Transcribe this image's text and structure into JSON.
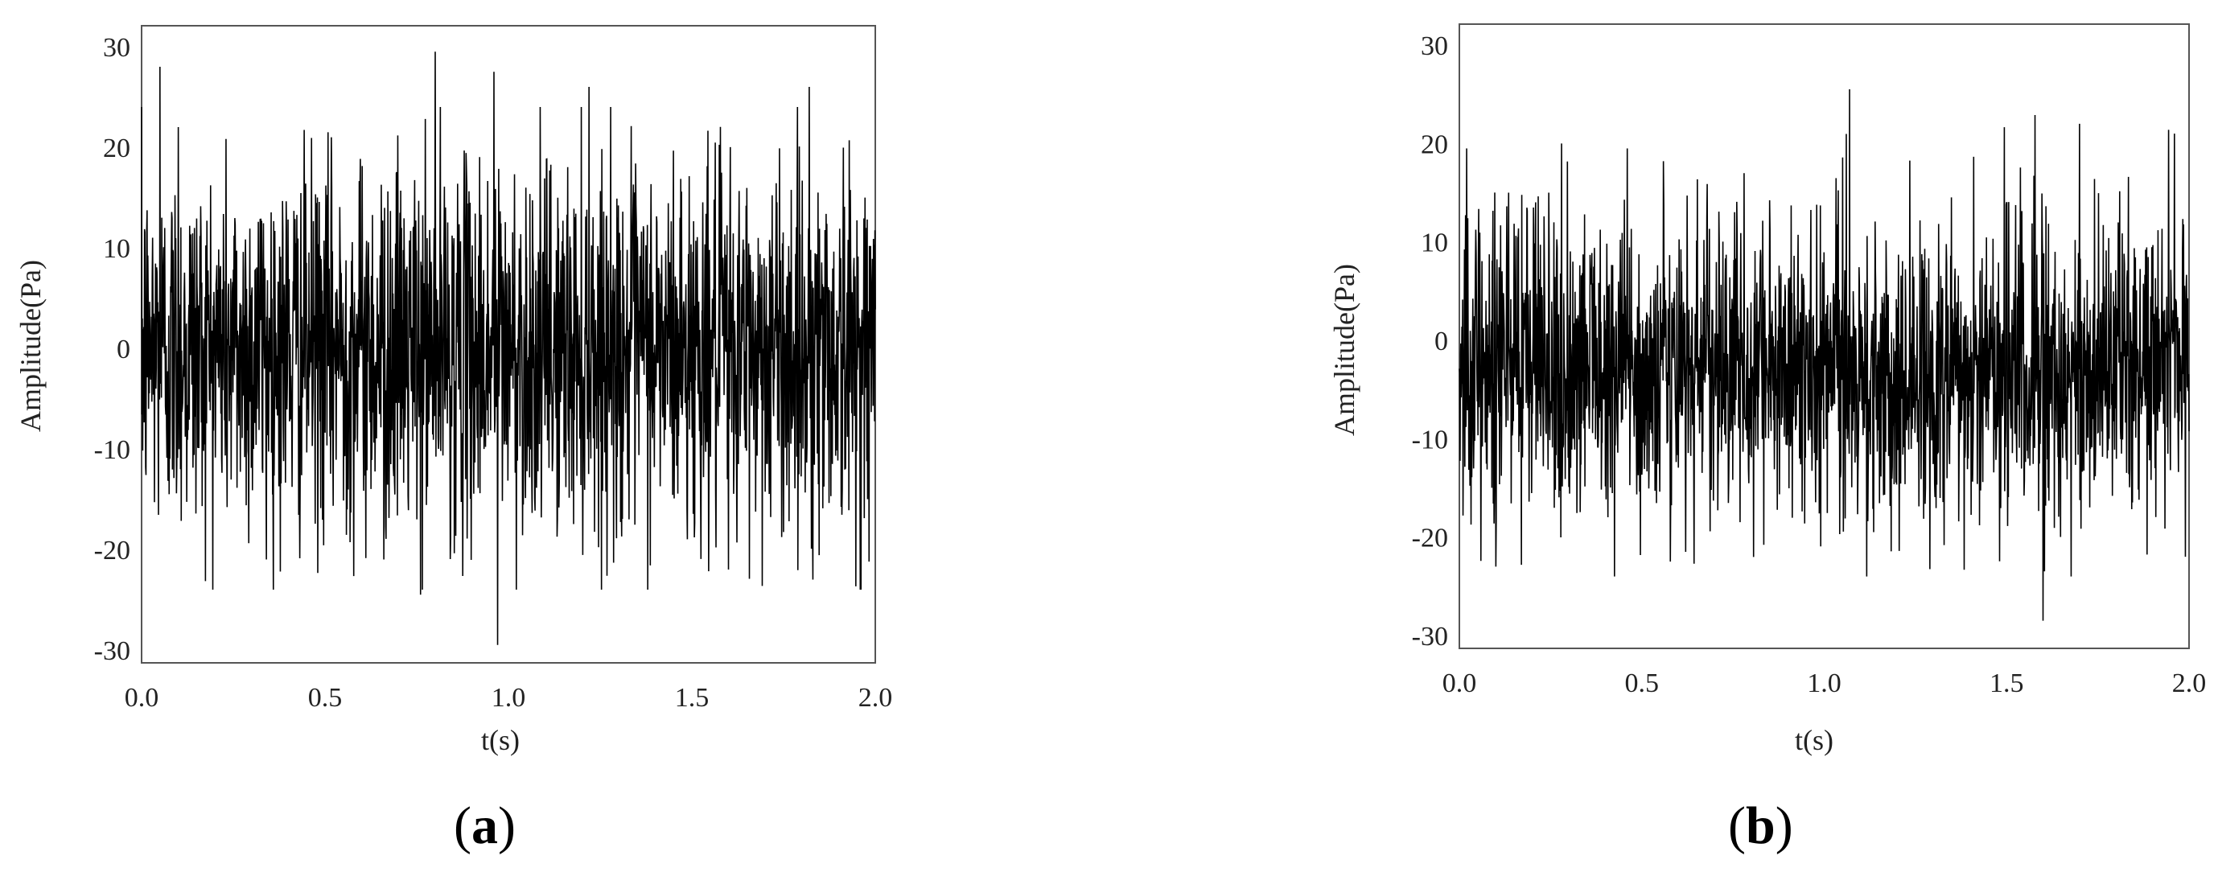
{
  "chart_data": [
    {
      "type": "line",
      "panel_label": "a",
      "xlabel": "t(s)",
      "ylabel": "Amplitude(Pa)",
      "xlim": [
        0.0,
        2.0
      ],
      "ylim": [
        -30,
        30
      ],
      "xticks": [
        "0.0",
        "0.5",
        "1.0",
        "1.5",
        "2.0"
      ],
      "yticks": [
        "30",
        "20",
        "10",
        "0",
        "-10",
        "-20",
        "-30"
      ],
      "grid": false,
      "legend": "none",
      "series": [
        {
          "samples": 2000,
          "mean": 0,
          "std": 9,
          "peaks": [
            {
              "x": 0.05,
              "y": 28
            },
            {
              "x": 0.1,
              "y": 22
            },
            {
              "x": 0.34,
              "y": -21
            },
            {
              "x": 0.66,
              "y": -21
            },
            {
              "x": 0.76,
              "y": -24.5
            },
            {
              "x": 0.8,
              "y": 29.5
            },
            {
              "x": 0.96,
              "y": 27.5
            },
            {
              "x": 0.97,
              "y": -29.5
            },
            {
              "x": 1.22,
              "y": 26
            },
            {
              "x": 1.6,
              "y": -22
            },
            {
              "x": 1.82,
              "y": 26
            },
            {
              "x": 1.83,
              "y": -23
            }
          ]
        }
      ]
    },
    {
      "type": "line",
      "panel_label": "b",
      "xlabel": "t(s)",
      "ylabel": "Amplitude(Pa)",
      "xlim": [
        0.0,
        2.0
      ],
      "ylim": [
        -30,
        30
      ],
      "xticks": [
        "0.0",
        "0.5",
        "1.0",
        "1.5",
        "2.0"
      ],
      "yticks": [
        "30",
        "20",
        "10",
        "0",
        "-10",
        "-20",
        "-30"
      ],
      "grid": false,
      "legend": "none",
      "series": [
        {
          "samples": 2000,
          "mean": -3,
          "std": 7.5,
          "peaks": [
            {
              "x": 0.02,
              "y": 19.5
            },
            {
              "x": 0.1,
              "y": -23
            },
            {
              "x": 0.28,
              "y": 20
            },
            {
              "x": 0.46,
              "y": 19.5
            },
            {
              "x": 0.62,
              "y": -21.5
            },
            {
              "x": 1.07,
              "y": 25.5
            },
            {
              "x": 1.6,
              "y": -28.5
            },
            {
              "x": 1.7,
              "y": 22
            },
            {
              "x": 1.96,
              "y": 21
            },
            {
              "x": 1.99,
              "y": -22
            }
          ]
        }
      ]
    }
  ],
  "captions": {
    "a_open": "(",
    "a_label": "a",
    "a_close": ")",
    "b_open": "(",
    "b_label": "b",
    "b_close": ")"
  }
}
